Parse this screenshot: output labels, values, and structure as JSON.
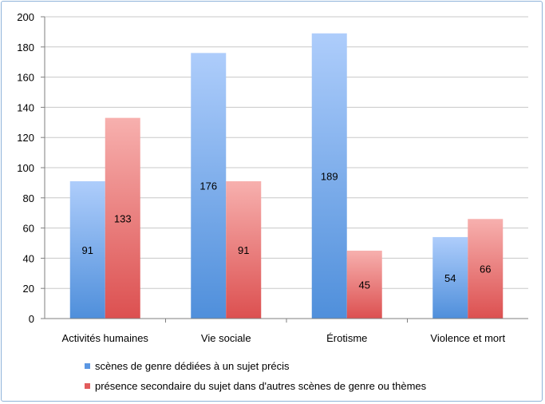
{
  "chart_data": {
    "type": "bar",
    "categories": [
      "Activités humaines",
      "Vie sociale",
      "Érotisme",
      "Violence et mort"
    ],
    "series": [
      {
        "name": "scènes de genre dédiées à un sujet précis",
        "values": [
          91,
          176,
          189,
          54
        ],
        "color": "#6aa0e6"
      },
      {
        "name": "présence secondaire du sujet dans d'autres scènes de genre ou thèmes",
        "values": [
          133,
          91,
          45,
          66
        ],
        "color": "#e86a6a"
      }
    ],
    "data_labels": [
      [
        "91",
        "176",
        "189",
        "54"
      ],
      [
        "133",
        "91",
        "45",
        "66"
      ]
    ],
    "ylim": [
      0,
      200
    ],
    "yticks": [
      "0",
      "20",
      "40",
      "60",
      "80",
      "100",
      "120",
      "140",
      "160",
      "180",
      "200"
    ],
    "grid": true,
    "legend_position": "bottom",
    "title": "",
    "xlabel": "",
    "ylabel": ""
  }
}
